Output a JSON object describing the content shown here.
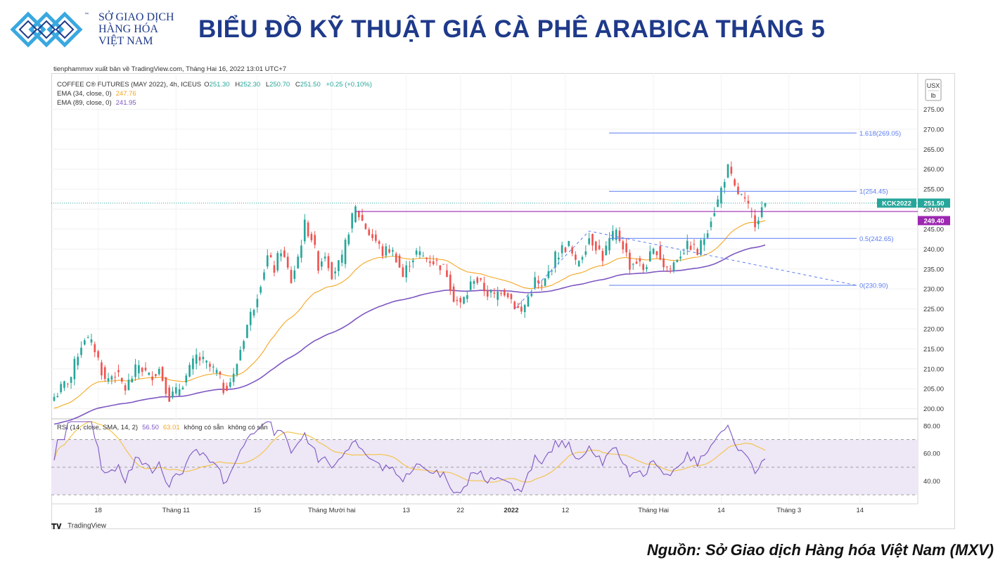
{
  "header": {
    "org_line1": "SỞ GIAO DỊCH",
    "org_line2": "HÀNG HÓA",
    "org_line3": "VIỆT NAM",
    "tm": "™",
    "title": "BIỂU ĐỒ KỸ THUẬT GIÁ CÀ PHÊ ARABICA THÁNG 5"
  },
  "publisher": "tienphammxv xuất bản về TradingView.com, Tháng Hai 16, 2022 13:01 UTC+7",
  "footer": {
    "source": "Nguồn: Sở Giao dịch Hàng hóa Việt Nam (MXV)"
  },
  "tv": {
    "brand": "TradingView",
    "currency": "USX",
    "unit": "lb",
    "instrument": "COFFEE C® FUTURES (MAY 2022), 4h, ICEUS",
    "ohlc": {
      "o_label": "O",
      "o": "251.30",
      "h_label": "H",
      "h": "252.30",
      "l_label": "L",
      "l": "250.70",
      "c_label": "C",
      "c": "251.50",
      "change": "+0.25 (+0.10%)"
    },
    "ema34": {
      "label": "EMA (34, close, 0)",
      "value": "247.76",
      "color": "#f5a623"
    },
    "ema89": {
      "label": "EMA (89, close, 0)",
      "value": "241.95",
      "color": "#7e57c2"
    },
    "rsi": {
      "label": "RSI (14, close, SMA, 14, 2)",
      "v1": "56.50",
      "v2": "63.01",
      "na1": "không có sẵn",
      "na2": "không có sẵn"
    },
    "last_tag": {
      "symbol": "KCK2022",
      "price": "251.50",
      "line_price": "249.40"
    },
    "fib": [
      {
        "label": "1.618(269.05)",
        "value": 269.05
      },
      {
        "label": "1(254.45)",
        "value": 254.45
      },
      {
        "label": "0.5(242.65)",
        "value": 242.65
      },
      {
        "label": "0(230.90)",
        "value": 230.9
      }
    ],
    "colors": {
      "up": "#26a69a",
      "down": "#ef5350",
      "fib": "#5b7cf2",
      "resistance": "#9c27b0",
      "rsi_line": "#7e57c2",
      "rsi_band": "#ede7f6",
      "rsi_sma": "#f5c242"
    }
  },
  "chart_data": {
    "type": "candlestick",
    "title": "BIỂU ĐỒ KỸ THUẬT GIÁ CÀ PHÊ ARABICA THÁNG 5",
    "ylim": [
      198,
      283
    ],
    "yticks": [
      "275.00",
      "270.00",
      "265.00",
      "260.00",
      "255.00",
      "250.00",
      "245.00",
      "240.00",
      "235.00",
      "230.00",
      "225.00",
      "220.00",
      "215.00",
      "210.00",
      "205.00",
      "200.00"
    ],
    "ytick_values": [
      275,
      270,
      265,
      260,
      255,
      250,
      245,
      240,
      235,
      230,
      225,
      220,
      215,
      210,
      205,
      200
    ],
    "xticks": [
      "18",
      "Tháng 11",
      "15",
      "Tháng Mười hai",
      "13",
      "22",
      "2022",
      "12",
      "Tháng Hai",
      "14",
      "Tháng 3",
      "14"
    ],
    "xtick_index": [
      13,
      36,
      60,
      82,
      104,
      120,
      135,
      151,
      177,
      197,
      217,
      238
    ],
    "close_path": [
      [
        0,
        203
      ],
      [
        5,
        208
      ],
      [
        7,
        214
      ],
      [
        9,
        218
      ],
      [
        12,
        215
      ],
      [
        15,
        207
      ],
      [
        18,
        209
      ],
      [
        21,
        205
      ],
      [
        25,
        211
      ],
      [
        28,
        208
      ],
      [
        31,
        210
      ],
      [
        34,
        203
      ],
      [
        36,
        204
      ],
      [
        39,
        208
      ],
      [
        42,
        213
      ],
      [
        45,
        211
      ],
      [
        48,
        209
      ],
      [
        50,
        205
      ],
      [
        53,
        208
      ],
      [
        55,
        215
      ],
      [
        57,
        221
      ],
      [
        59,
        226
      ],
      [
        61,
        232
      ],
      [
        63,
        238
      ],
      [
        65,
        235
      ],
      [
        67,
        240
      ],
      [
        70,
        232
      ],
      [
        72,
        238
      ],
      [
        74,
        246
      ],
      [
        76,
        243
      ],
      [
        78,
        236
      ],
      [
        80,
        239
      ],
      [
        82,
        234
      ],
      [
        85,
        237
      ],
      [
        87,
        245
      ],
      [
        89,
        250
      ],
      [
        91,
        247
      ],
      [
        93,
        244
      ],
      [
        95,
        242
      ],
      [
        97,
        239
      ],
      [
        99,
        240
      ],
      [
        101,
        238
      ],
      [
        103,
        233
      ],
      [
        105,
        237
      ],
      [
        107,
        239
      ],
      [
        109,
        238
      ],
      [
        112,
        237
      ],
      [
        114,
        236
      ],
      [
        116,
        234
      ],
      [
        118,
        228
      ],
      [
        120,
        226
      ],
      [
        122,
        229
      ],
      [
        124,
        233
      ],
      [
        126,
        231
      ],
      [
        128,
        229
      ],
      [
        130,
        228
      ],
      [
        132,
        230
      ],
      [
        134,
        229
      ],
      [
        136,
        226
      ],
      [
        138,
        224
      ],
      [
        140,
        228
      ],
      [
        142,
        232
      ],
      [
        144,
        230
      ],
      [
        146,
        234
      ],
      [
        148,
        238
      ],
      [
        150,
        240
      ],
      [
        152,
        241
      ],
      [
        154,
        236
      ],
      [
        156,
        239
      ],
      [
        158,
        243
      ],
      [
        160,
        241
      ],
      [
        162,
        238
      ],
      [
        164,
        242
      ],
      [
        166,
        244
      ],
      [
        168,
        241
      ],
      [
        170,
        236
      ],
      [
        172,
        237
      ],
      [
        174,
        235
      ],
      [
        176,
        238
      ],
      [
        178,
        240
      ],
      [
        180,
        236
      ],
      [
        182,
        235
      ],
      [
        184,
        238
      ],
      [
        186,
        240
      ],
      [
        188,
        241
      ],
      [
        190,
        239
      ],
      [
        192,
        243
      ],
      [
        194,
        248
      ],
      [
        196,
        252
      ],
      [
        198,
        258
      ],
      [
        199,
        260
      ],
      [
        201,
        255
      ],
      [
        203,
        253
      ],
      [
        205,
        250
      ],
      [
        207,
        247
      ],
      [
        209,
        250
      ],
      [
        210,
        251.5
      ]
    ],
    "rsi_ylim": [
      25,
      83
    ],
    "rsi_levels": [
      70,
      50,
      30
    ],
    "rsi_yticks": [
      "80.00",
      "60.00",
      "40.00"
    ],
    "rsi_ytick_values": [
      80,
      60,
      40
    ]
  }
}
